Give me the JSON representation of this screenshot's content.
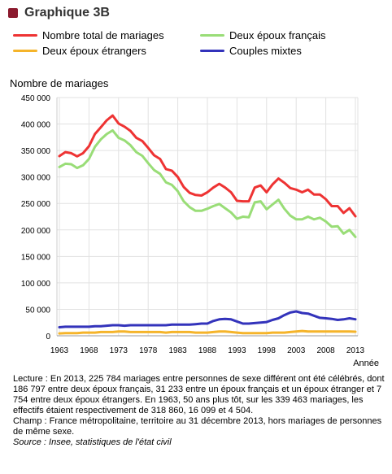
{
  "title": "Graphique 3B",
  "legend": [
    {
      "label": "Nombre total de mariages",
      "color": "#ee3333"
    },
    {
      "label": "Deux époux français",
      "color": "#99dd77"
    },
    {
      "label": "Deux époux étrangers",
      "color": "#f5b42a"
    },
    {
      "label": "Couples mixtes",
      "color": "#3333bb"
    }
  ],
  "notes": {
    "lecture": "Lecture : En 2013, 225 784 mariages entre personnes de sexe différent ont été célébrés, dont 186 797 entre deux époux français, 31 233 entre un époux français et un époux étranger et 7 754 entre deux époux étrangers. En 1963, 50 ans plus tôt, sur les 339 463 mariages, les effectifs étaient respectivement de 318 860, 16 099 et 4 504.",
    "champ": "Champ : France métropolitaine, territoire au 31 décembre 2013, hors mariages de personnes de même sexe.",
    "source": "Source : Insee, statistiques de l'état civil"
  },
  "chart_data": {
    "type": "line",
    "ylabel": "Nombre de mariages",
    "xlabel": "Année",
    "ylim": [
      0,
      450000
    ],
    "yticks": [
      0,
      50000,
      100000,
      150000,
      200000,
      250000,
      300000,
      350000,
      400000,
      450000
    ],
    "ytick_labels": [
      "0",
      "50 000",
      "100 000",
      "150 000",
      "200 000",
      "250 000",
      "300 000",
      "350 000",
      "400 000",
      "450 000"
    ],
    "xlim": [
      1963,
      2013
    ],
    "xticks": [
      1963,
      1968,
      1973,
      1978,
      1983,
      1988,
      1993,
      1998,
      2003,
      2008,
      2013
    ],
    "grid": true,
    "x": [
      1963,
      1964,
      1965,
      1966,
      1967,
      1968,
      1969,
      1970,
      1971,
      1972,
      1973,
      1974,
      1975,
      1976,
      1977,
      1978,
      1979,
      1980,
      1981,
      1982,
      1983,
      1984,
      1985,
      1986,
      1987,
      1988,
      1989,
      1990,
      1991,
      1992,
      1993,
      1994,
      1995,
      1996,
      1997,
      1998,
      1999,
      2000,
      2001,
      2002,
      2003,
      2004,
      2005,
      2006,
      2007,
      2008,
      2009,
      2010,
      2011,
      2012,
      2013
    ],
    "series": [
      {
        "name": "Nombre total de mariages",
        "color": "#ee3333",
        "values": [
          339463,
          347000,
          345000,
          339000,
          345000,
          358000,
          381000,
          394000,
          407000,
          416000,
          401000,
          395000,
          387000,
          374000,
          368000,
          355000,
          341000,
          334000,
          315000,
          312000,
          300000,
          281000,
          270000,
          266000,
          265000,
          271000,
          280000,
          287000,
          280000,
          271000,
          255000,
          254000,
          254000,
          280000,
          284000,
          271000,
          286000,
          297000,
          289000,
          279000,
          276000,
          271000,
          276000,
          267000,
          267000,
          258000,
          245000,
          245000,
          232000,
          241000,
          225784
        ]
      },
      {
        "name": "Deux époux français",
        "color": "#99dd77",
        "values": [
          318860,
          325000,
          324000,
          317000,
          322000,
          334000,
          357000,
          371000,
          381000,
          388000,
          374000,
          369000,
          360000,
          347000,
          340000,
          326000,
          313000,
          306000,
          290000,
          285000,
          273000,
          254000,
          243000,
          236000,
          236000,
          240000,
          245000,
          249000,
          241000,
          233000,
          221000,
          225000,
          224000,
          252000,
          254000,
          239000,
          248000,
          257000,
          240000,
          227000,
          220000,
          220000,
          225000,
          220000,
          223000,
          216000,
          206000,
          207000,
          193000,
          200000,
          186797
        ]
      },
      {
        "name": "Deux époux étrangers",
        "color": "#f5b42a",
        "values": [
          4504,
          5000,
          5000,
          5000,
          6000,
          6000,
          6000,
          7000,
          7000,
          7000,
          8000,
          8000,
          7000,
          7000,
          7000,
          7000,
          7000,
          7000,
          6000,
          7000,
          7000,
          7000,
          7000,
          6000,
          6000,
          6000,
          7000,
          8000,
          8000,
          7000,
          6000,
          5000,
          5000,
          5000,
          5000,
          5000,
          6000,
          6000,
          6000,
          7000,
          8000,
          9000,
          8000,
          8000,
          8000,
          8000,
          8000,
          8000,
          8000,
          8000,
          7754
        ]
      },
      {
        "name": "Couples mixtes",
        "color": "#3333bb",
        "values": [
          16099,
          17000,
          17000,
          17000,
          17000,
          17000,
          18000,
          18000,
          19000,
          20000,
          20000,
          19000,
          20000,
          20000,
          20000,
          20000,
          20000,
          20000,
          20000,
          21000,
          21000,
          21000,
          21000,
          22000,
          23000,
          23000,
          28000,
          31000,
          32000,
          31000,
          27000,
          23000,
          23000,
          24000,
          25000,
          26000,
          30000,
          33000,
          39000,
          44000,
          46000,
          43000,
          42000,
          38000,
          34000,
          33000,
          32000,
          30000,
          31000,
          33000,
          31233
        ]
      }
    ]
  }
}
